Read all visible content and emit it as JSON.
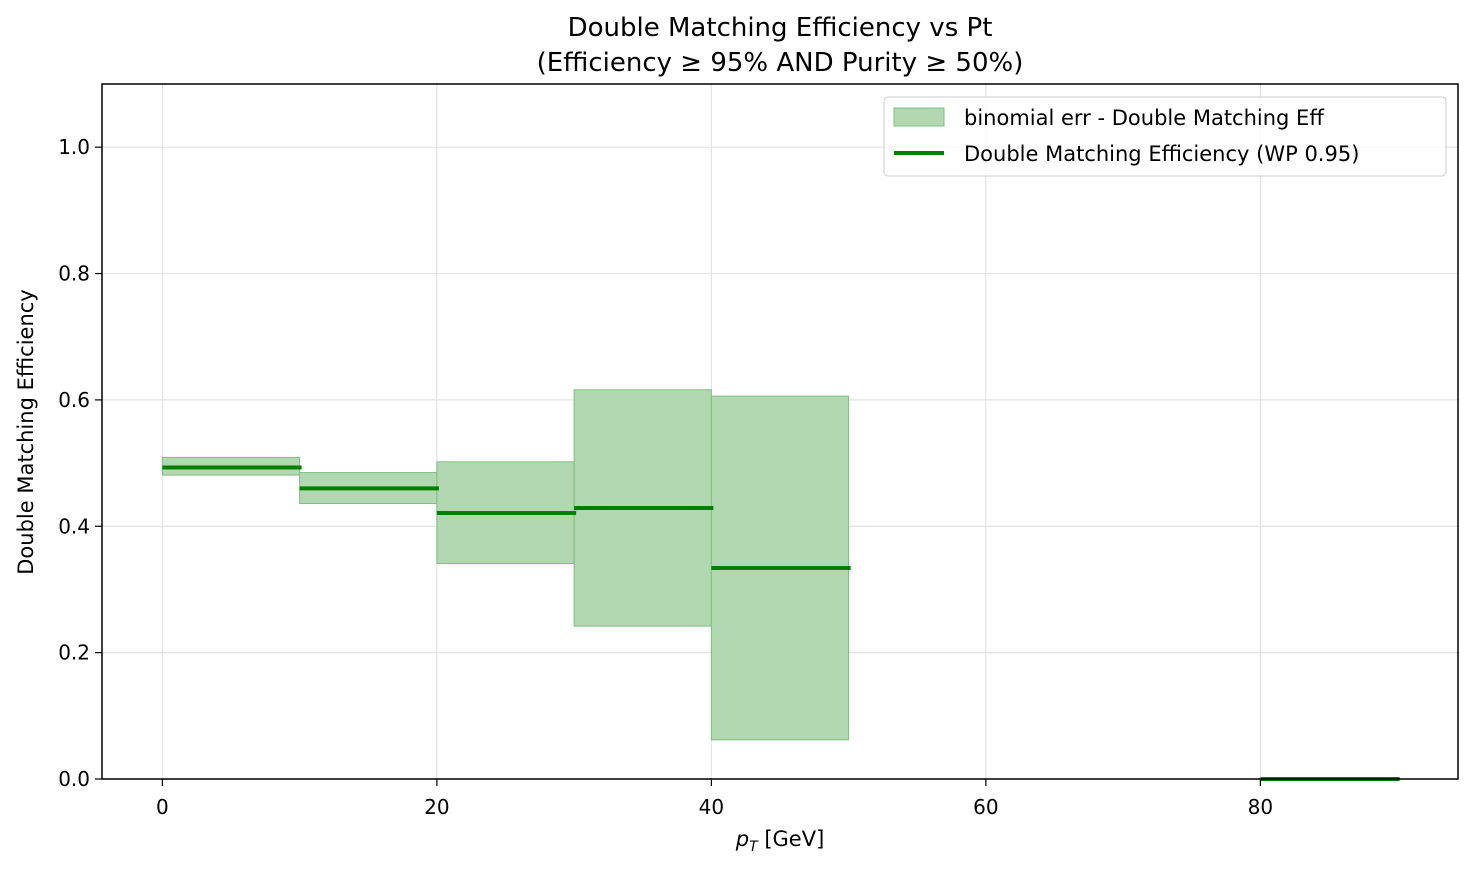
{
  "chart_data": {
    "type": "line",
    "title": "Double Matching Efficiency vs Pt",
    "subtitle": "(Efficiency ≥ 95% AND Purity ≥ 50%)",
    "xlabel_main": "p",
    "xlabel_sub": "T",
    "xlabel_unit": " [GeV]",
    "ylabel": "Double Matching Efficiency",
    "xlim": [
      -4.4,
      94.4
    ],
    "ylim": [
      0,
      1.1
    ],
    "xticks": [
      0,
      20,
      40,
      60,
      80
    ],
    "yticks": [
      0.0,
      0.2,
      0.4,
      0.6,
      0.8,
      1.0
    ],
    "grid": true,
    "legend_position": "top-right",
    "colors": {
      "line": "#008000",
      "band_fill": "#b2d8b2",
      "band_edge": "#7fbf7f"
    },
    "legend": [
      {
        "label": "binomial err - Double Matching Eff",
        "kind": "band"
      },
      {
        "label": "Double Matching Efficiency (WP 0.95)",
        "kind": "line"
      }
    ],
    "bins": [
      {
        "x_low": 0,
        "x_high": 10,
        "value": 0.493,
        "err_low": 0.481,
        "err_high": 0.509
      },
      {
        "x_low": 10,
        "x_high": 20,
        "value": 0.46,
        "err_low": 0.436,
        "err_high": 0.485
      },
      {
        "x_low": 20,
        "x_high": 30,
        "value": 0.421,
        "err_low": 0.341,
        "err_high": 0.502
      },
      {
        "x_low": 30,
        "x_high": 40,
        "value": 0.429,
        "err_low": 0.242,
        "err_high": 0.616
      },
      {
        "x_low": 40,
        "x_high": 50,
        "value": 0.334,
        "err_low": 0.062,
        "err_high": 0.606
      },
      {
        "x_low": 80,
        "x_high": 90,
        "value": 0.0,
        "err_low": 0.0,
        "err_high": 0.0
      }
    ]
  }
}
